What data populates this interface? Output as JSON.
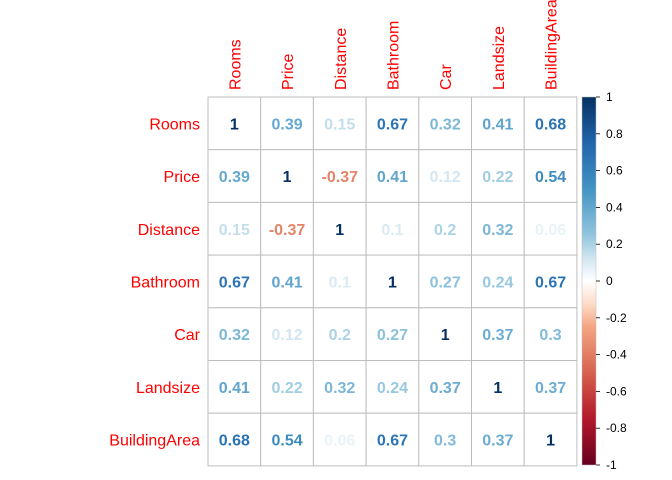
{
  "chart_data": {
    "type": "heatmap",
    "title": "",
    "variables": [
      "Rooms",
      "Price",
      "Distance",
      "Bathroom",
      "Car",
      "Landsize",
      "BuildingArea"
    ],
    "matrix": [
      [
        1,
        0.39,
        0.15,
        0.67,
        0.32,
        0.41,
        0.68
      ],
      [
        0.39,
        1,
        -0.37,
        0.41,
        0.12,
        0.22,
        0.54
      ],
      [
        0.15,
        -0.37,
        1,
        0.1,
        0.2,
        0.32,
        0.06
      ],
      [
        0.67,
        0.41,
        0.1,
        1,
        0.27,
        0.24,
        0.67
      ],
      [
        0.32,
        0.12,
        0.2,
        0.27,
        1,
        0.37,
        0.3
      ],
      [
        0.41,
        0.22,
        0.32,
        0.24,
        0.37,
        1,
        0.37
      ],
      [
        0.68,
        0.54,
        0.06,
        0.67,
        0.3,
        0.37,
        1
      ]
    ],
    "color_scale": {
      "range": [
        -1,
        1
      ],
      "ticks": [
        "1",
        "0.8",
        "0.6",
        "0.4",
        "0.2",
        "0",
        "-0.2",
        "-0.4",
        "-0.6",
        "-0.8",
        "-1"
      ],
      "stops": [
        {
          "value": -1,
          "color": "#67001f"
        },
        {
          "value": -0.75,
          "color": "#b2182b"
        },
        {
          "value": -0.5,
          "color": "#d6604d"
        },
        {
          "value": -0.25,
          "color": "#f4a582"
        },
        {
          "value": -0.125,
          "color": "#fddbc7"
        },
        {
          "value": 0,
          "color": "#ffffff"
        },
        {
          "value": 0.125,
          "color": "#d1e5f0"
        },
        {
          "value": 0.25,
          "color": "#92c5de"
        },
        {
          "value": 0.5,
          "color": "#4393c3"
        },
        {
          "value": 0.75,
          "color": "#2166ac"
        },
        {
          "value": 1,
          "color": "#053061"
        }
      ]
    },
    "label_color": "#ff0000",
    "grid_color": "#bebebe",
    "grid": true
  }
}
